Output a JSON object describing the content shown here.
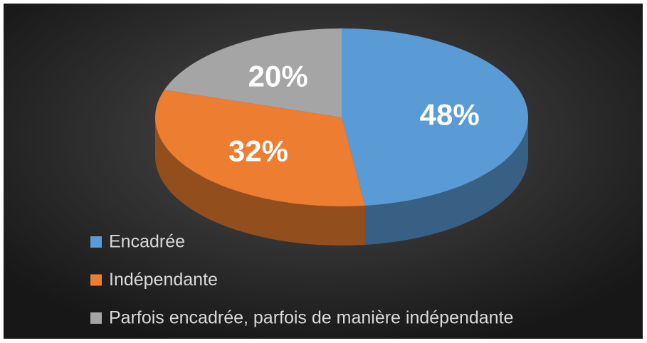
{
  "chart_data": {
    "type": "pie",
    "categories": [
      "Encadrée",
      "Indépendante",
      "Parfois encadrée, parfois de manière indépendante"
    ],
    "values": [
      48,
      32,
      20
    ],
    "value_labels": [
      "48%",
      "32%",
      "20%"
    ],
    "colors": [
      "#5b9bd5",
      "#ed7d31",
      "#a5a5a5"
    ],
    "legend": "bottom-left"
  }
}
